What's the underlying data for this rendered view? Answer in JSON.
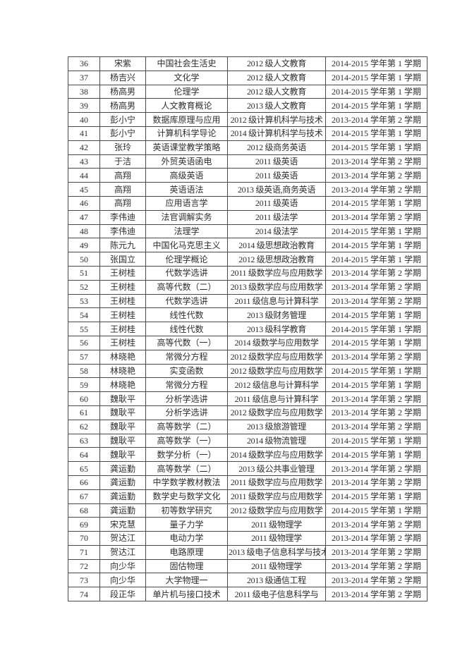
{
  "page": {
    "background_color": "#ffffff",
    "text_color": "#2e2e2e",
    "table_border_color": "#4a4a4a"
  },
  "table": {
    "rows": [
      [
        "36",
        "宋紫",
        "中国社会生活史",
        "2012 级人文教育",
        "2014-2015 学年第 1 学期"
      ],
      [
        "37",
        "杨吉兴",
        "文化学",
        "2012 级人文教育",
        "2014-2015 学年第 1 学期"
      ],
      [
        "38",
        "杨高男",
        "伦理学",
        "2012 级人文教育",
        "2014-2015 学年第 1 学期"
      ],
      [
        "39",
        "杨高男",
        "人文教育概论",
        "2013 级人文教育",
        "2014-2015 学年第 1 学期"
      ],
      [
        "40",
        "彭小宁",
        "数据库原理与应用",
        "2012 级计算机科学与技术",
        "2013-2014 学年第 2 学期"
      ],
      [
        "41",
        "彭小宁",
        "计算机科学导论",
        "2014 级计算机科学与技术",
        "2014-2015 学年第 1 学期"
      ],
      [
        "42",
        "张玲",
        "英语课堂教学策略",
        "2012 级商务英语",
        "2014-2015 学年第 1 学期"
      ],
      [
        "43",
        "于洁",
        "外贸英语函电",
        "2011 级英语",
        "2013-2014 学年第 2 学期"
      ],
      [
        "44",
        "高翔",
        "高级英语",
        "2011 级英语",
        "2013-2014 学年第 2 学期"
      ],
      [
        "45",
        "高翔",
        "英语语法",
        "2013 级英语,商务英语",
        "2013-2014 学年第 2 学期"
      ],
      [
        "46",
        "高翔",
        "应用语言学",
        "2011 级英语",
        "2014-2015 学年第 1 学期"
      ],
      [
        "47",
        "李伟迪",
        "法官调解实务",
        "2011 级法学",
        "2013-2014 学年第 2 学期"
      ],
      [
        "48",
        "李伟迪",
        "法理学",
        "2014 级法学",
        "2014-2015 学年第 1 学期"
      ],
      [
        "49",
        "陈元九",
        "中国化马克思主义",
        "2014 级思想政治教育",
        "2014-2015 学年第 1 学期"
      ],
      [
        "50",
        "张国立",
        "伦理学概论",
        "2012 级思想政治教育",
        "2014-2015 学年第 1 学期"
      ],
      [
        "51",
        "王树桂",
        "代数学选讲",
        "2011 级数学应与应用数学",
        "2013-2014 学年第 2 学期"
      ],
      [
        "52",
        "王树桂",
        "高等代数（二）",
        "2013 级数学应与应用数学",
        "2013-2014 学年第 2 学期"
      ],
      [
        "53",
        "王树桂",
        "代数学选讲",
        "2011 级信息与计算科学",
        "2013-2014 学年第 2 学期"
      ],
      [
        "54",
        "王树桂",
        "线性代数",
        "2013 级财务管理",
        "2014-2015 学年第 1 学期"
      ],
      [
        "55",
        "王树桂",
        "线性代数",
        "2013 级科学教育",
        "2014-2015 学年第 1 学期"
      ],
      [
        "56",
        "王树桂",
        "高等代数（一）",
        "2014 级数学与应用数学",
        "2014-2015 学年第 1 学期"
      ],
      [
        "57",
        "林晓艳",
        "常微分方程",
        "2012 级数学应与应用数学",
        "2013-2014 学年第 2 学期"
      ],
      [
        "58",
        "林晓艳",
        "实变函数",
        "2012 级数学应与应用数学",
        "2014-2015 学年第 1 学期"
      ],
      [
        "59",
        "林晓艳",
        "常微分方程",
        "2012 级信息与计算科学",
        "2014-2015 学年第 1 学期"
      ],
      [
        "60",
        "魏耿平",
        "分析学选讲",
        "2011 级信息与计算科学",
        "2013-2014 学年第 2 学期"
      ],
      [
        "61",
        "魏耿平",
        "分析学选讲",
        "2012 级数学应与应用数学",
        "2013-2014 学年第 2 学期"
      ],
      [
        "62",
        "魏耿平",
        "高等数学（二）",
        "2013 级旅游管理",
        "2013-2014 学年第 2 学期"
      ],
      [
        "63",
        "魏耿平",
        "高等数学（一）",
        "2014 级物流管理",
        "2014-2015 学年第 1 学期"
      ],
      [
        "64",
        "魏耿平",
        "数学分析（一）",
        "2014 级数学应与应用数学",
        "2014-2015 学年第 1 学期"
      ],
      [
        "65",
        "龚运勤",
        "高等数学（二）",
        "2013 级公共事业管理",
        "2013-2014 学年第 2 学期"
      ],
      [
        "66",
        "龚运勤",
        "中学数学教材教法",
        "2011 级数学应与应用数学",
        "2013-2014 学年第 2 学期"
      ],
      [
        "67",
        "龚运勤",
        "数学史与数学文化",
        "2011 级数学应与应用数学",
        "2014-2015 学年第 1 学期"
      ],
      [
        "68",
        "龚运勤",
        "初等数学研究",
        "2012 级数学应与应用数学",
        "2014-2015 学年第 1 学期"
      ],
      [
        "69",
        "宋克慧",
        "量子力学",
        "2011 级物理学",
        "2013-2014 学年第 2 学期"
      ],
      [
        "70",
        "贺达江",
        "电动力学",
        "2011 级物理学",
        "2013-2014 学年第 2 学期"
      ],
      [
        "71",
        "贺达江",
        "电路原理",
        "2013 级电子信息科学与技术",
        "2013-2014 学年第 2 学期"
      ],
      [
        "72",
        "向少华",
        "固估物理",
        "2011 级物理学",
        "2013-2014 学年第 2 学期"
      ],
      [
        "73",
        "向少华",
        "大学物理一",
        "2013 级通信工程",
        "2013-2014 学年第 2 学期"
      ],
      [
        "74",
        "段正华",
        "单片机与接口技术",
        "2011 级电子信息科学与",
        "2013-2014 学年第 2 学期"
      ]
    ]
  }
}
